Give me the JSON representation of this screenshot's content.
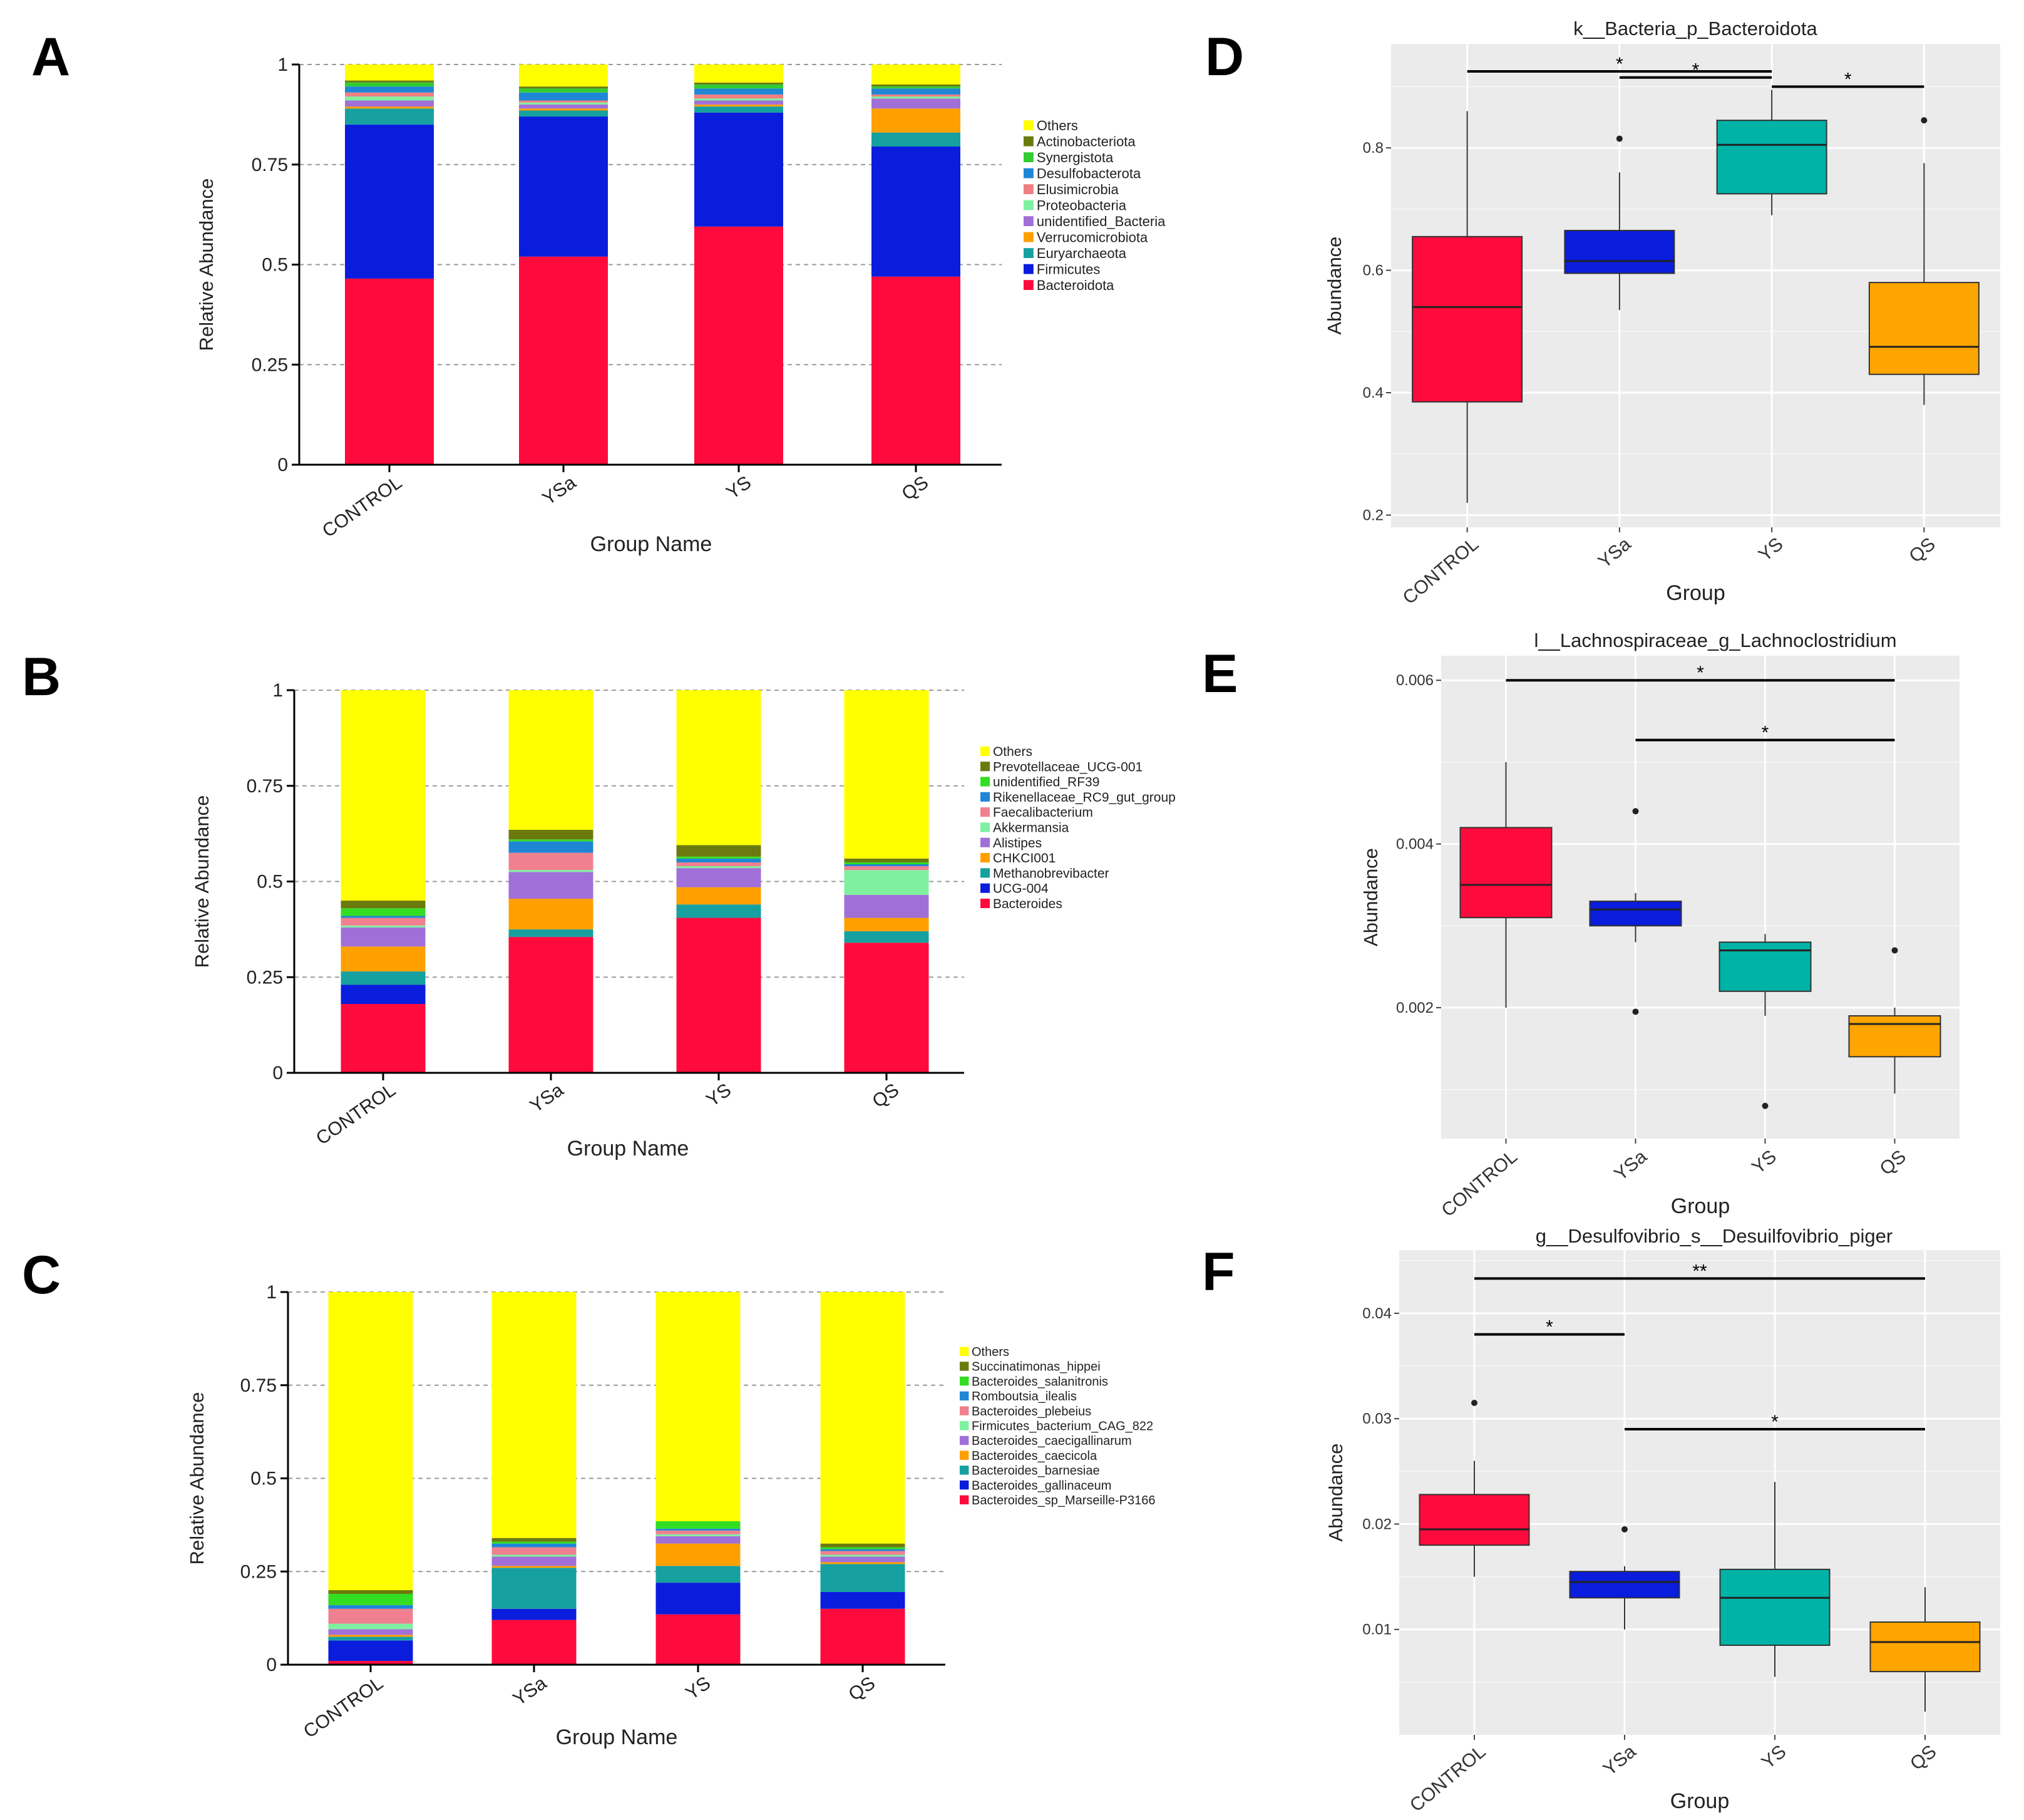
{
  "colors": {
    "bars": {
      "Others": "#ffff00",
      "Actinobacteriota": "#6b7a0e",
      "Synergistota": "#33cc33",
      "Desulfobacterota": "#1f86d6",
      "Elusimicrobia": "#f08080",
      "Proteobacteria": "#7ff0a0",
      "unidentified_Bacteria": "#a070d8",
      "Verrucomicrobiota": "#ff9f00",
      "Euryarchaeota": "#16a0a0",
      "Firmicutes": "#0a1cdc",
      "Bacteroidota": "#ff0a3c",
      "Prevotellaceae_UCG-001": "#6b7a0e",
      "unidentified_RF39": "#33dd22",
      "Rikenellaceae_RC9_gut_group": "#1f86d6",
      "Faecalibacterium": "#f08090",
      "Akkermansia": "#7ff0a0",
      "Alistipes": "#a070d8",
      "CHKCI001": "#ff9f00",
      "Methanobrevibacter": "#16a0a0",
      "UCG-004": "#0a1cdc",
      "Bacteroides": "#ff0a3c",
      "Succinatimonas_hippei": "#6b7a0e",
      "Bacteroides_salanitronis": "#33dd22",
      "Romboutsia_ilealis": "#1f86d6",
      "Bacteroides_plebeius": "#f08090",
      "Firmicutes_bacterium_CAG_822": "#7ff0a0",
      "Bacteroides_caecigallinarum": "#a070d8",
      "Bacteroides_caecicola": "#ff9f00",
      "Bacteroides_barnesiae": "#16a0a0",
      "Bacteroides_gallinaceum": "#0a1cdc",
      "Bacteroides_sp_Marseille-P3166": "#ff0a3c"
    },
    "box_groups": [
      "#ff0a3c",
      "#0a1cdc",
      "#00b3a7",
      "#ffa500"
    ]
  },
  "chart_data": [
    {
      "panel": "A",
      "type": "bar",
      "stacked": true,
      "ylabel": "Relative Abundance",
      "xlabel": "Group Name",
      "categories": [
        "CONTROL",
        "YSa",
        "YS",
        "QS"
      ],
      "yticks": [
        "0",
        "0.25",
        "0.5",
        "0.75",
        "1"
      ],
      "ylim": [
        0,
        1
      ],
      "series": [
        {
          "name": "Bacteroidota",
          "values": [
            0.465,
            0.52,
            0.595,
            0.47
          ]
        },
        {
          "name": "Firmicutes",
          "values": [
            0.385,
            0.35,
            0.285,
            0.325
          ]
        },
        {
          "name": "Euryarchaeota",
          "values": [
            0.04,
            0.015,
            0.015,
            0.035
          ]
        },
        {
          "name": "Verrucomicrobiota",
          "values": [
            0.005,
            0.005,
            0.005,
            0.06
          ]
        },
        {
          "name": "unidentified_Bacteria",
          "values": [
            0.015,
            0.01,
            0.01,
            0.025
          ]
        },
        {
          "name": "Proteobacteria",
          "values": [
            0.01,
            0.005,
            0.005,
            0.005
          ]
        },
        {
          "name": "Elusimicrobia",
          "values": [
            0.01,
            0.005,
            0.01,
            0.005
          ]
        },
        {
          "name": "Desulfobacterota",
          "values": [
            0.015,
            0.02,
            0.015,
            0.015
          ]
        },
        {
          "name": "Synergistota",
          "values": [
            0.01,
            0.01,
            0.01,
            0.005
          ]
        },
        {
          "name": "Actinobacteriota",
          "values": [
            0.005,
            0.005,
            0.005,
            0.005
          ]
        },
        {
          "name": "Others",
          "values": [
            0.04,
            0.055,
            0.045,
            0.05
          ]
        }
      ],
      "legend": [
        "Others",
        "Actinobacteriota",
        "Synergistota",
        "Desulfobacterota",
        "Elusimicrobia",
        "Proteobacteria",
        "unidentified_Bacteria",
        "Verrucomicrobiota",
        "Euryarchaeota",
        "Firmicutes",
        "Bacteroidota"
      ]
    },
    {
      "panel": "B",
      "type": "bar",
      "stacked": true,
      "ylabel": "Relative Abundance",
      "xlabel": "Group Name",
      "categories": [
        "CONTROL",
        "YSa",
        "YS",
        "QS"
      ],
      "yticks": [
        "0",
        "0.25",
        "0.5",
        "0.75",
        "1"
      ],
      "ylim": [
        0,
        1
      ],
      "series": [
        {
          "name": "Bacteroides",
          "values": [
            0.18,
            0.355,
            0.405,
            0.34
          ]
        },
        {
          "name": "UCG-004",
          "values": [
            0.05,
            0.0,
            0.0,
            0.0
          ]
        },
        {
          "name": "Methanobrevibacter",
          "values": [
            0.035,
            0.02,
            0.035,
            0.03
          ]
        },
        {
          "name": "CHKCI001",
          "values": [
            0.065,
            0.08,
            0.045,
            0.035
          ]
        },
        {
          "name": "Alistipes",
          "values": [
            0.05,
            0.07,
            0.05,
            0.06
          ]
        },
        {
          "name": "Akkermansia",
          "values": [
            0.005,
            0.005,
            0.005,
            0.065
          ]
        },
        {
          "name": "Faecalibacterium",
          "values": [
            0.02,
            0.045,
            0.01,
            0.01
          ]
        },
        {
          "name": "Rikenellaceae_RC9_gut_group",
          "values": [
            0.005,
            0.03,
            0.01,
            0.005
          ]
        },
        {
          "name": "unidentified_RF39",
          "values": [
            0.02,
            0.005,
            0.005,
            0.005
          ]
        },
        {
          "name": "Prevotellaceae_UCG-001",
          "values": [
            0.02,
            0.025,
            0.03,
            0.01
          ]
        },
        {
          "name": "Others",
          "values": [
            0.55,
            0.365,
            0.405,
            0.44
          ]
        }
      ],
      "legend": [
        "Others",
        "Prevotellaceae_UCG-001",
        "unidentified_RF39",
        "Rikenellaceae_RC9_gut_group",
        "Faecalibacterium",
        "Akkermansia",
        "Alistipes",
        "CHKCI001",
        "Methanobrevibacter",
        "UCG-004",
        "Bacteroides"
      ]
    },
    {
      "panel": "C",
      "type": "bar",
      "stacked": true,
      "ylabel": "Relative Abundance",
      "xlabel": "Group Name",
      "categories": [
        "CONTROL",
        "YSa",
        "YS",
        "QS"
      ],
      "yticks": [
        "0",
        "0.25",
        "0.5",
        "0.75",
        "1"
      ],
      "ylim": [
        0,
        1
      ],
      "series": [
        {
          "name": "Bacteroides_sp_Marseille-P3166",
          "values": [
            0.01,
            0.12,
            0.135,
            0.15
          ]
        },
        {
          "name": "Bacteroides_gallinaceum",
          "values": [
            0.055,
            0.03,
            0.085,
            0.045
          ]
        },
        {
          "name": "Bacteroides_barnesiae",
          "values": [
            0.01,
            0.11,
            0.045,
            0.075
          ]
        },
        {
          "name": "Bacteroides_caecicola",
          "values": [
            0.005,
            0.005,
            0.06,
            0.005
          ]
        },
        {
          "name": "Bacteroides_caecigallinarum",
          "values": [
            0.015,
            0.025,
            0.02,
            0.015
          ]
        },
        {
          "name": "Firmicutes_bacterium_CAG_822",
          "values": [
            0.015,
            0.005,
            0.005,
            0.005
          ]
        },
        {
          "name": "Bacteroides_plebeius",
          "values": [
            0.04,
            0.02,
            0.01,
            0.01
          ]
        },
        {
          "name": "Romboutsia_ilealis",
          "values": [
            0.01,
            0.01,
            0.005,
            0.005
          ]
        },
        {
          "name": "Bacteroides_salanitronis",
          "values": [
            0.03,
            0.005,
            0.02,
            0.005
          ]
        },
        {
          "name": "Succinatimonas_hippei",
          "values": [
            0.01,
            0.01,
            0.0,
            0.01
          ]
        },
        {
          "name": "Others",
          "values": [
            0.8,
            0.66,
            0.615,
            0.675
          ]
        }
      ],
      "legend": [
        "Others",
        "Succinatimonas_hippei",
        "Bacteroides_salanitronis",
        "Romboutsia_ilealis",
        "Bacteroides_plebeius",
        "Firmicutes_bacterium_CAG_822",
        "Bacteroides_caecigallinarum",
        "Bacteroides_caecicola",
        "Bacteroides_barnesiae",
        "Bacteroides_gallinaceum",
        "Bacteroides_sp_Marseille-P3166"
      ]
    },
    {
      "panel": "D",
      "type": "box",
      "title": "k__Bacteria_p_Bacteroidota",
      "ylabel": "Abundance",
      "xlabel": "Group",
      "categories": [
        "CONTROL",
        "YSa",
        "YS",
        "QS"
      ],
      "ylim": [
        0.18,
        0.97
      ],
      "yticks": [
        0.2,
        0.4,
        0.6,
        0.8
      ],
      "ytick_labels": [
        "0.2",
        "0.4",
        "0.6",
        "0.8"
      ],
      "boxes": [
        {
          "min": 0.22,
          "q1": 0.385,
          "median": 0.54,
          "q3": 0.655,
          "max": 0.86,
          "outliers": []
        },
        {
          "min": 0.535,
          "q1": 0.595,
          "median": 0.615,
          "q3": 0.665,
          "max": 0.76,
          "outliers": [
            0.815
          ]
        },
        {
          "min": 0.69,
          "q1": 0.725,
          "median": 0.805,
          "q3": 0.845,
          "max": 0.895,
          "outliers": []
        },
        {
          "min": 0.38,
          "q1": 0.43,
          "median": 0.475,
          "q3": 0.58,
          "max": 0.775,
          "outliers": [
            0.845
          ]
        }
      ],
      "significance": [
        {
          "from": 0,
          "to": 2,
          "y": 0.925,
          "label": "*"
        },
        {
          "from": 1,
          "to": 2,
          "y": 0.915,
          "label": "*"
        },
        {
          "from": 2,
          "to": 3,
          "y": 0.9,
          "label": "*"
        }
      ]
    },
    {
      "panel": "E",
      "type": "box",
      "title": "l__Lachnospiraceae_g_Lachnoclostridium",
      "ylabel": "Abundance",
      "xlabel": "Group",
      "categories": [
        "CONTROL",
        "YSa",
        "YS",
        "QS"
      ],
      "ylim": [
        0.0004,
        0.0063
      ],
      "yticks": [
        0.002,
        0.004,
        0.006
      ],
      "ytick_labels": [
        "0.002",
        "0.004",
        "0.006"
      ],
      "boxes": [
        {
          "min": 0.002,
          "q1": 0.0031,
          "median": 0.0035,
          "q3": 0.0042,
          "max": 0.005,
          "outliers": []
        },
        {
          "min": 0.0028,
          "q1": 0.003,
          "median": 0.0032,
          "q3": 0.0033,
          "max": 0.0034,
          "outliers": [
            0.0044,
            0.00195
          ]
        },
        {
          "min": 0.0019,
          "q1": 0.0022,
          "median": 0.0027,
          "q3": 0.0028,
          "max": 0.0029,
          "outliers": [
            0.0008
          ]
        },
        {
          "min": 0.00095,
          "q1": 0.0014,
          "median": 0.0018,
          "q3": 0.0019,
          "max": 0.002,
          "outliers": [
            0.0027
          ]
        }
      ],
      "significance": [
        {
          "from": 0,
          "to": 3,
          "y": 0.006,
          "label": "*"
        },
        {
          "from": 1,
          "to": 3,
          "y": 0.00527,
          "label": "*"
        }
      ]
    },
    {
      "panel": "F",
      "type": "box",
      "title": "g__Desulfovibrio_s__Desuilfovibrio_piger",
      "ylabel": "Abundance",
      "xlabel": "Group",
      "categories": [
        "CONTROL",
        "YSa",
        "YS",
        "QS"
      ],
      "ylim": [
        0.0,
        0.046
      ],
      "yticks": [
        0.01,
        0.02,
        0.03,
        0.04
      ],
      "ytick_labels": [
        "0.01",
        "0.02",
        "0.03",
        "0.04"
      ],
      "boxes": [
        {
          "min": 0.015,
          "q1": 0.018,
          "median": 0.0195,
          "q3": 0.0228,
          "max": 0.026,
          "outliers": [
            0.0315
          ]
        },
        {
          "min": 0.01,
          "q1": 0.013,
          "median": 0.0145,
          "q3": 0.0155,
          "max": 0.016,
          "outliers": [
            0.0195
          ]
        },
        {
          "min": 0.0055,
          "q1": 0.0085,
          "median": 0.013,
          "q3": 0.0157,
          "max": 0.024,
          "outliers": []
        },
        {
          "min": 0.0022,
          "q1": 0.006,
          "median": 0.0088,
          "q3": 0.0107,
          "max": 0.014,
          "outliers": []
        }
      ],
      "significance": [
        {
          "from": 0,
          "to": 3,
          "y": 0.0433,
          "label": "**"
        },
        {
          "from": 0,
          "to": 1,
          "y": 0.038,
          "label": "*"
        },
        {
          "from": 1,
          "to": 3,
          "y": 0.029,
          "label": "*"
        }
      ]
    }
  ]
}
